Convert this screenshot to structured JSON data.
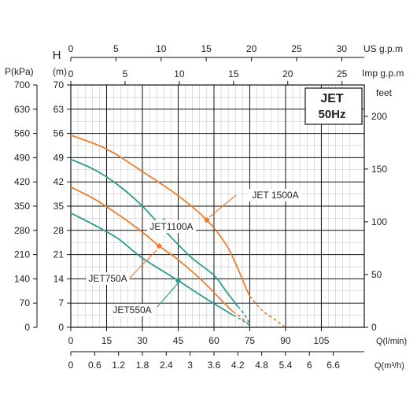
{
  "chart_data": {
    "type": "line",
    "title_box": {
      "line1": "JET",
      "line2": "50Hz"
    },
    "x_main": {
      "label": "Q(l/min)",
      "ticks": [
        0,
        15,
        30,
        45,
        60,
        75,
        90,
        105
      ],
      "range": [
        0,
        123
      ]
    },
    "x_m3h": {
      "label": "Q(m³/h)",
      "ticks": [
        "0",
        "0.6",
        "1.2",
        "1.8",
        "2.4",
        "3",
        "3.6",
        "4.2",
        "4.8",
        "5.4",
        "6",
        "6.6"
      ],
      "factor": 0.06
    },
    "x_usgpm": {
      "label": "US g.p.m",
      "ticks": [
        0,
        5,
        10,
        15,
        20,
        25,
        30
      ],
      "factor": 0.264172
    },
    "x_impgpm": {
      "label": "Imp g.p.m",
      "ticks": [
        0,
        5,
        10,
        15,
        20,
        25
      ],
      "factor": 0.219969
    },
    "y_head": {
      "label": "H",
      "unit": "(m)",
      "ticks": [
        0,
        7,
        14,
        21,
        28,
        35,
        42,
        49,
        56,
        63,
        70
      ],
      "range": [
        0,
        70
      ]
    },
    "y_pressure": {
      "label": "P(kPa)",
      "ticks": [
        0,
        70,
        140,
        210,
        280,
        350,
        420,
        490,
        560,
        630,
        700
      ]
    },
    "y_feet": {
      "label": "feet",
      "ticks": [
        0,
        50,
        100,
        150,
        200
      ],
      "factor": 3.28084
    },
    "grid": true,
    "series": [
      {
        "name": "JET 1500A",
        "color": "#e8802f",
        "points": [
          [
            0,
            55.5
          ],
          [
            15,
            51.5
          ],
          [
            30,
            45
          ],
          [
            45,
            38
          ],
          [
            57,
            31
          ],
          [
            65,
            24
          ],
          [
            70,
            17
          ],
          [
            73,
            12
          ],
          [
            75,
            9
          ]
        ],
        "dashed_tail": [
          [
            75,
            9
          ],
          [
            80,
            5
          ],
          [
            85,
            2.5
          ],
          [
            90,
            0
          ]
        ],
        "marker": [
          57,
          31
        ]
      },
      {
        "name": "JET1100A",
        "color": "#2a9d8f",
        "points": [
          [
            0,
            48.5
          ],
          [
            10,
            45.5
          ],
          [
            20,
            41
          ],
          [
            30,
            35
          ],
          [
            40,
            27.5
          ],
          [
            50,
            20.5
          ],
          [
            60,
            15
          ],
          [
            65,
            10.5
          ],
          [
            70,
            6
          ]
        ],
        "dashed_tail": [
          [
            70,
            6
          ],
          [
            72.5,
            4
          ],
          [
            75,
            1
          ]
        ],
        "marker": null
      },
      {
        "name": "JET750A",
        "color": "#e8802f",
        "points": [
          [
            0,
            40.5
          ],
          [
            10,
            37
          ],
          [
            20,
            32.5
          ],
          [
            30,
            27.5
          ],
          [
            37,
            23.5
          ],
          [
            45,
            19.5
          ],
          [
            55,
            13.5
          ],
          [
            65,
            6.5
          ],
          [
            68,
            4.5
          ]
        ],
        "dashed_tail": [
          [
            68,
            4.5
          ],
          [
            72,
            2.5
          ],
          [
            75,
            0.5
          ]
        ],
        "marker": [
          37,
          23.5
        ]
      },
      {
        "name": "JET550A",
        "color": "#2a9d8f",
        "points": [
          [
            0,
            33
          ],
          [
            10,
            29.5
          ],
          [
            20,
            25.5
          ],
          [
            30,
            20
          ],
          [
            45,
            13.5
          ],
          [
            55,
            9
          ],
          [
            62,
            6
          ],
          [
            68,
            3.5
          ]
        ],
        "dashed_tail": [
          [
            68,
            3.5
          ],
          [
            72,
            2
          ],
          [
            75,
            0.5
          ]
        ],
        "marker": [
          45,
          13.5
        ]
      }
    ]
  }
}
